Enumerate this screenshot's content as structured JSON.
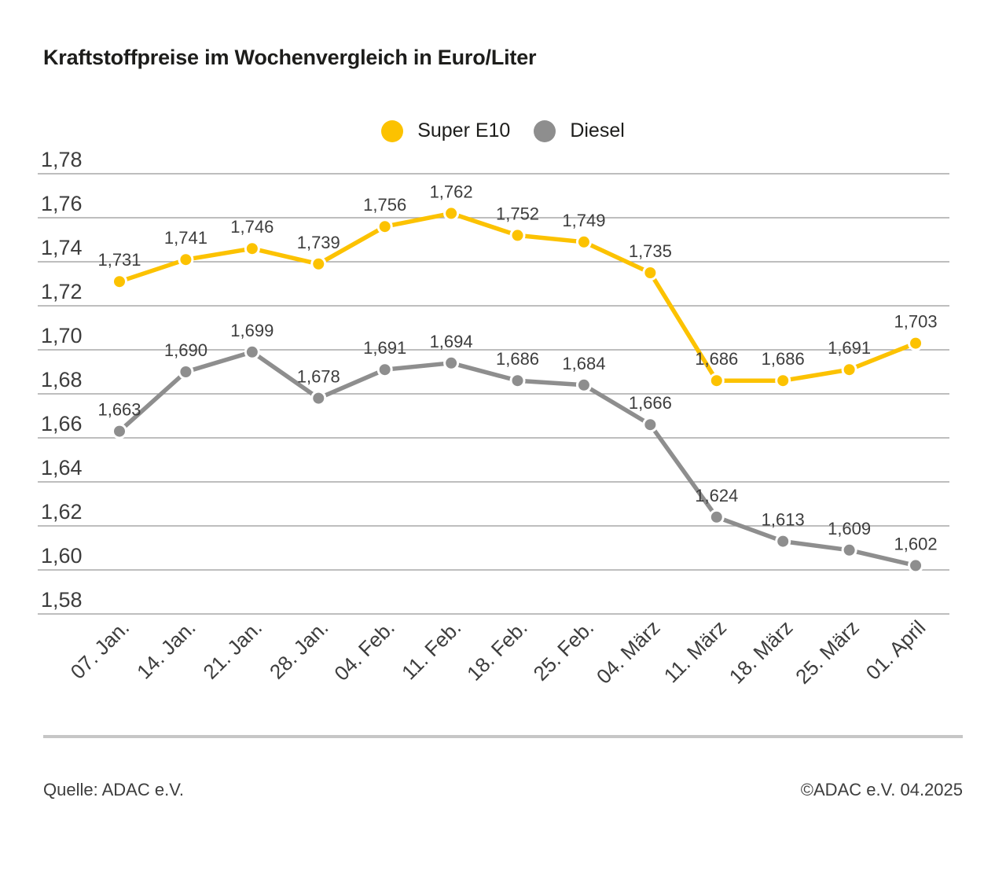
{
  "title": "Kraftstoffpreise im Wochenvergleich in Euro/Liter",
  "legend": {
    "items": [
      {
        "label": "Super E10",
        "color": "#fcc200"
      },
      {
        "label": "Diesel",
        "color": "#8e8e8e"
      }
    ]
  },
  "footer": {
    "source": "Quelle: ADAC e.V.",
    "copyright": "©ADAC e.V. 04.2025"
  },
  "chart_data": {
    "type": "line",
    "title": "Kraftstoffpreise im Wochenvergleich in Euro/Liter",
    "unit": "Euro/Liter",
    "categories": [
      "07. Jan.",
      "14. Jan.",
      "21. Jan.",
      "28. Jan.",
      "04. Feb.",
      "11. Feb.",
      "18. Feb.",
      "25. Feb.",
      "04. März",
      "11. März",
      "18. März",
      "25. März",
      "01. April"
    ],
    "series": [
      {
        "name": "Super E10",
        "color": "#fcc200",
        "values": [
          1.731,
          1.741,
          1.746,
          1.739,
          1.756,
          1.762,
          1.752,
          1.749,
          1.735,
          1.686,
          1.686,
          1.691,
          1.703
        ],
        "point_labels": [
          "1,731",
          "1,741",
          "1,746",
          "1,739",
          "1,756",
          "1,762",
          "1,752",
          "1,749",
          "1,735",
          "1,686",
          "1,686",
          "1,691",
          "1,703"
        ]
      },
      {
        "name": "Diesel",
        "color": "#8e8e8e",
        "values": [
          1.663,
          1.69,
          1.699,
          1.678,
          1.691,
          1.694,
          1.686,
          1.684,
          1.666,
          1.624,
          1.613,
          1.609,
          1.602
        ],
        "point_labels": [
          "1,663",
          "1,690",
          "1,699",
          "1,678",
          "1,691",
          "1,694",
          "1,686",
          "1,684",
          "1,666",
          "1,624",
          "1,613",
          "1,609",
          "1,602"
        ]
      }
    ],
    "ylim": [
      1.58,
      1.78
    ],
    "ytick_step": 0.02,
    "yticks": [
      {
        "label": "1,78",
        "value": 1.78
      },
      {
        "label": "1,76",
        "value": 1.76
      },
      {
        "label": "1,74",
        "value": 1.74
      },
      {
        "label": "1,72",
        "value": 1.72
      },
      {
        "label": "1,70",
        "value": 1.7
      },
      {
        "label": "1,68",
        "value": 1.68
      },
      {
        "label": "1,66",
        "value": 1.66
      },
      {
        "label": "1,64",
        "value": 1.64
      },
      {
        "label": "1,62",
        "value": 1.62
      },
      {
        "label": "1,60",
        "value": 1.6
      },
      {
        "label": "1,58",
        "value": 1.58
      }
    ],
    "xlabel": "",
    "ylabel": "",
    "grid": "horizontal",
    "grid_color": "#a8a8a8",
    "text_color": "#3d3d3d",
    "marker_outline_color": "#ffffff",
    "legend_position": "top-center"
  }
}
